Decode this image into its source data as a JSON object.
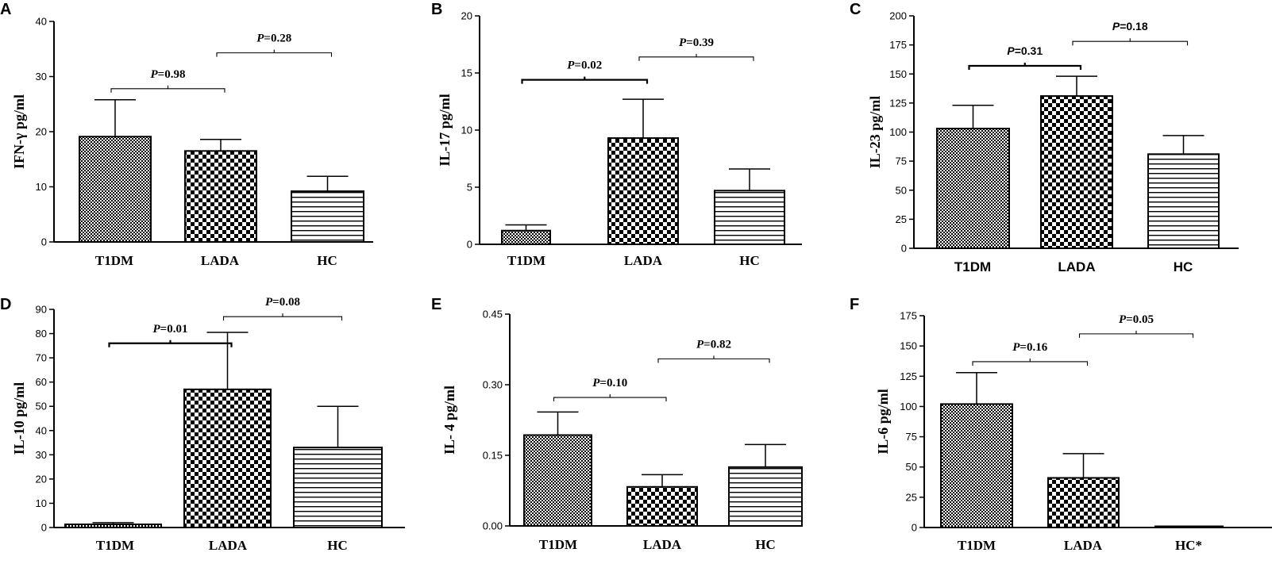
{
  "patterns": {
    "T1DM": "fine-checker",
    "LADA": "coarse-checker",
    "HC": "horizontal-lines"
  },
  "chart_data": [
    {
      "panel": "A",
      "type": "bar",
      "ylabel": "IFN-γ  pg/ml",
      "categories": [
        "T1DM",
        "LADA",
        "HC"
      ],
      "values": [
        19.1,
        16.5,
        9.2
      ],
      "errors": [
        6.7,
        2.1,
        2.7
      ],
      "ylim": [
        0,
        40
      ],
      "yticks": [
        0,
        10,
        20,
        30,
        40
      ],
      "tick_labels": [
        "0",
        "10",
        "20",
        "30",
        "40"
      ],
      "comparisons": [
        {
          "from": 0,
          "to": 1,
          "label": "=0.98",
          "level": 27.8
        },
        {
          "from": 1,
          "to": 2,
          "label": "=0.28",
          "level": 34.3
        }
      ]
    },
    {
      "panel": "B",
      "type": "bar",
      "ylabel": "IL-17  pg/ml",
      "categories": [
        "T1DM",
        "LADA",
        "HC"
      ],
      "values": [
        1.2,
        9.3,
        4.7
      ],
      "errors": [
        0.5,
        3.4,
        1.9
      ],
      "ylim": [
        0,
        20
      ],
      "yticks": [
        0,
        5,
        10,
        15,
        20
      ],
      "tick_labels": [
        "0",
        "5",
        "10",
        "15",
        "20"
      ],
      "comparisons": [
        {
          "from": 0,
          "to": 1,
          "label": "=0.02",
          "level": 14.4
        },
        {
          "from": 1,
          "to": 2,
          "label": "=0.39",
          "level": 16.4
        }
      ]
    },
    {
      "panel": "C",
      "type": "bar",
      "ylabel": "IL-23  pg/ml",
      "categories": [
        "T1DM",
        "LADA",
        "HC"
      ],
      "values": [
        103,
        131,
        81
      ],
      "errors": [
        20,
        17,
        16
      ],
      "ylim": [
        0,
        200
      ],
      "yticks": [
        0,
        25,
        50,
        75,
        100,
        125,
        150,
        175,
        200
      ],
      "tick_labels": [
        "0",
        "25",
        "50",
        "75",
        "100",
        "125",
        "150",
        "175",
        "200"
      ],
      "comparisons": [
        {
          "from": 0,
          "to": 1,
          "label": "=0.31",
          "level": 157
        },
        {
          "from": 1,
          "to": 2,
          "label": "=0.18",
          "level": 178
        }
      ]
    },
    {
      "panel": "D",
      "type": "bar",
      "ylabel": "IL-10  pg/ml",
      "categories": [
        "T1DM",
        "LADA",
        "HC"
      ],
      "values": [
        1.3,
        57,
        33
      ],
      "errors": [
        0.7,
        23.5,
        17
      ],
      "ylim": [
        0,
        90
      ],
      "yticks": [
        0,
        10,
        20,
        30,
        40,
        50,
        60,
        70,
        80,
        90
      ],
      "tick_labels": [
        "0",
        "10",
        "20",
        "30",
        "40",
        "50",
        "60",
        "70",
        "80",
        "90"
      ],
      "comparisons": [
        {
          "from": 0,
          "to": 1,
          "label": "=0.01",
          "level": 76
        },
        {
          "from": 1,
          "to": 2,
          "label": "=0.08",
          "level": 87
        }
      ]
    },
    {
      "panel": "E",
      "type": "bar",
      "ylabel": "IL- 4  pg/ml",
      "categories": [
        "T1DM",
        "LADA",
        "HC"
      ],
      "values": [
        0.193,
        0.083,
        0.125
      ],
      "errors": [
        0.049,
        0.026,
        0.048
      ],
      "ylim": [
        0,
        0.45
      ],
      "yticks": [
        0,
        0.15,
        0.3,
        0.45
      ],
      "tick_labels": [
        "0.00",
        "0.15",
        "0.30",
        "0.45"
      ],
      "comparisons": [
        {
          "from": 0,
          "to": 1,
          "label": "=0.10",
          "level": 0.273
        },
        {
          "from": 1,
          "to": 2,
          "label": "=0.82",
          "level": 0.355
        }
      ]
    },
    {
      "panel": "F",
      "type": "bar",
      "ylabel": "IL-6  pg/ml",
      "categories": [
        "T1DM",
        "LADA",
        "HC*"
      ],
      "values": [
        102,
        41,
        0.5
      ],
      "errors": [
        26,
        20,
        0
      ],
      "ylim": [
        0,
        175
      ],
      "yticks": [
        0,
        25,
        50,
        75,
        100,
        125,
        150,
        175
      ],
      "tick_labels": [
        "0",
        "25",
        "50",
        "75",
        "100",
        "125",
        "150",
        "175"
      ],
      "comparisons": [
        {
          "from": 0,
          "to": 1,
          "label": "=0.16",
          "level": 137
        },
        {
          "from": 1,
          "to": 2,
          "label": "=0.05",
          "level": 160
        }
      ]
    }
  ],
  "p_prefix": "P"
}
